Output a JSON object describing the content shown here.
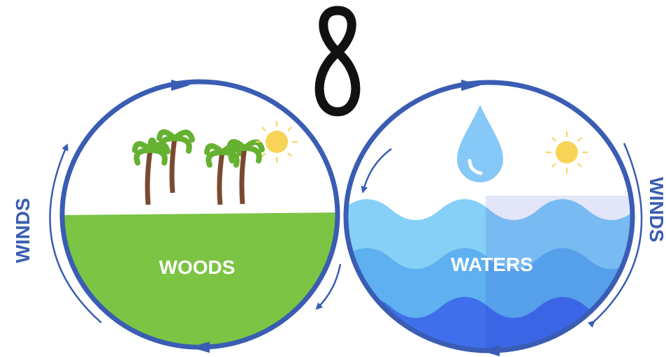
{
  "nodes": [
    {
      "label": "WOODS"
    },
    {
      "label": "WATERS"
    }
  ],
  "side_labels": [
    "WINDS",
    "WINDS"
  ]
}
